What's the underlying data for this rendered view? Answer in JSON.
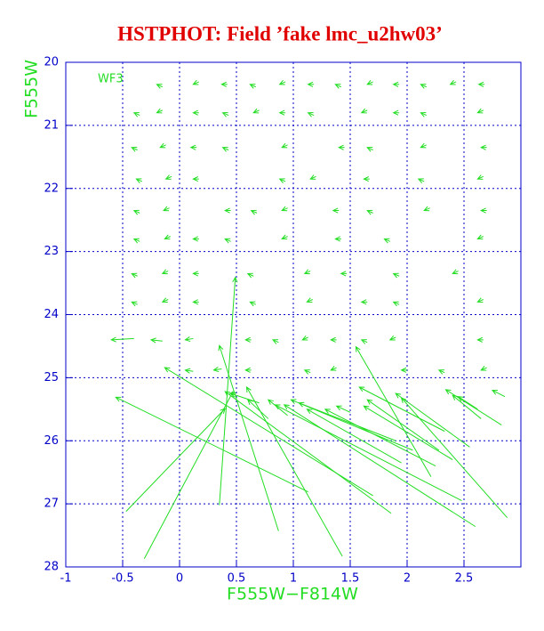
{
  "chart_data": {
    "type": "quiver",
    "title": "HSTPHOT: Field ’fake lmc_u2hw03’",
    "x_label": "F555W−F814W",
    "y_label": "F555W",
    "annotation": "WF3",
    "title_color": "#e00000",
    "label_color": "#22dd22",
    "tick_color": "#0000c8",
    "color": "#22dd22",
    "grid": true,
    "xlim": [
      -1,
      3
    ],
    "ylim": [
      28,
      20
    ],
    "xticks": [
      -1,
      -0.5,
      0,
      0.5,
      1,
      1.5,
      2,
      2.5
    ],
    "yticks": [
      20,
      21,
      22,
      23,
      24,
      25,
      26,
      27,
      28
    ],
    "vectors": {
      "x": [
        -0.15,
        0.17,
        0.42,
        0.67,
        0.93,
        1.18,
        1.42,
        1.7,
        1.93,
        2.17,
        2.43,
        2.68,
        -0.35,
        -0.15,
        0.17,
        0.43,
        0.7,
        0.93,
        1.18,
        1.65,
        1.93,
        2.17,
        2.67,
        -0.37,
        -0.12,
        0.15,
        0.43,
        0.95,
        1.45,
        1.7,
        2.17,
        2.7,
        -0.33,
        -0.07,
        0.17,
        0.93,
        1.2,
        1.67,
        2.15,
        2.67,
        -0.35,
        -0.09,
        0.45,
        0.68,
        0.95,
        1.4,
        1.7,
        2.2,
        2.7,
        -0.35,
        -0.08,
        0.17,
        0.45,
        0.95,
        1.42,
        1.85,
        2.67,
        -0.37,
        -0.1,
        0.17,
        0.65,
        1.15,
        1.47,
        1.93,
        2.45,
        -0.37,
        -0.1,
        0.17,
        0.67,
        1.17,
        1.65,
        1.93,
        2.67,
        -0.15,
        0.12,
        0.63,
        0.87,
        1.13,
        1.38,
        1.65,
        1.9,
        2.67,
        0.12,
        0.37,
        0.63,
        1.15,
        1.38,
        2.0,
        2.33,
        2.7,
        1.13,
        -0.47,
        -0.31,
        0.35,
        0.87,
        1.43,
        1.7,
        1.86,
        2.21,
        2.48,
        2.6,
        2.88,
        2.83,
        2.65,
        2.33,
        2.28,
        2.55,
        1.9,
        2.05,
        1.95,
        2.25,
        2.4,
        2.62,
        0.78,
        0.7,
        2.86,
        -0.4,
        0.95,
        1.5
      ],
      "y": [
        20.39,
        20.31,
        20.35,
        20.39,
        20.31,
        20.35,
        20.39,
        20.31,
        20.35,
        20.39,
        20.31,
        20.35,
        20.84,
        20.76,
        20.8,
        20.84,
        20.76,
        20.8,
        20.84,
        20.76,
        20.8,
        20.84,
        20.76,
        21.39,
        21.31,
        21.35,
        21.39,
        21.31,
        21.35,
        21.39,
        21.31,
        21.35,
        21.89,
        21.81,
        21.85,
        21.89,
        21.81,
        21.85,
        21.89,
        21.81,
        22.39,
        22.31,
        22.35,
        22.39,
        22.31,
        22.35,
        22.39,
        22.31,
        22.35,
        22.84,
        22.76,
        22.8,
        22.84,
        22.76,
        22.8,
        22.84,
        22.76,
        23.39,
        23.31,
        23.35,
        23.39,
        23.31,
        23.35,
        23.39,
        23.31,
        23.84,
        23.76,
        23.8,
        23.84,
        23.76,
        23.8,
        23.84,
        23.76,
        24.42,
        24.38,
        24.4,
        24.44,
        24.36,
        24.4,
        24.44,
        24.36,
        24.4,
        24.9,
        24.86,
        24.88,
        24.92,
        24.84,
        24.88,
        24.92,
        24.84,
        26.81,
        27.12,
        27.87,
        27.02,
        27.43,
        27.83,
        26.87,
        27.15,
        26.57,
        26.95,
        27.36,
        27.22,
        25.75,
        25.65,
        25.85,
        26.15,
        26.1,
        26.0,
        26.15,
        26.35,
        26.4,
        26.3,
        25.5,
        25.65,
        25.4,
        25.3,
        24.38,
        25.6,
        25.55
      ],
      "x_end": [
        -0.2,
        0.12,
        0.37,
        0.62,
        0.88,
        1.13,
        1.37,
        1.65,
        1.88,
        2.12,
        2.38,
        2.63,
        -0.4,
        -0.2,
        0.12,
        0.38,
        0.65,
        0.88,
        1.13,
        1.6,
        1.88,
        2.12,
        2.62,
        -0.42,
        -0.17,
        0.1,
        0.38,
        0.9,
        1.4,
        1.65,
        2.12,
        2.65,
        -0.38,
        -0.12,
        0.12,
        0.88,
        1.15,
        1.62,
        2.1,
        2.62,
        -0.4,
        -0.14,
        0.4,
        0.63,
        0.9,
        1.35,
        1.65,
        2.15,
        2.65,
        -0.4,
        -0.13,
        0.12,
        0.4,
        0.9,
        1.37,
        1.8,
        2.62,
        -0.42,
        -0.15,
        0.12,
        0.6,
        1.1,
        1.42,
        1.88,
        2.4,
        -0.42,
        -0.15,
        0.12,
        0.62,
        1.12,
        1.6,
        1.88,
        2.62,
        -0.25,
        0.05,
        0.58,
        0.82,
        1.08,
        1.33,
        1.6,
        1.85,
        2.62,
        0.05,
        0.3,
        0.58,
        1.1,
        1.33,
        1.95,
        2.28,
        2.65,
        -0.56,
        0.4,
        0.47,
        0.49,
        0.35,
        0.59,
        -0.13,
        0.4,
        1.55,
        0.84,
        0.92,
        1.95,
        2.34,
        2.4,
        1.58,
        1.65,
        1.9,
        1.05,
        0.98,
        1.12,
        1.28,
        1.62,
        2.45,
        0.6,
        0.45,
        2.75,
        -0.6,
        0.78,
        1.38
      ],
      "y_end": [
        20.35,
        20.35,
        20.35,
        20.35,
        20.35,
        20.35,
        20.35,
        20.35,
        20.35,
        20.35,
        20.35,
        20.35,
        20.8,
        20.8,
        20.8,
        20.8,
        20.8,
        20.8,
        20.8,
        20.8,
        20.8,
        20.8,
        20.8,
        21.35,
        21.35,
        21.35,
        21.35,
        21.35,
        21.35,
        21.35,
        21.35,
        21.35,
        21.85,
        21.85,
        21.85,
        21.85,
        21.85,
        21.85,
        21.85,
        21.85,
        22.35,
        22.35,
        22.35,
        22.35,
        22.35,
        22.35,
        22.35,
        22.35,
        22.35,
        22.8,
        22.8,
        22.8,
        22.8,
        22.8,
        22.8,
        22.8,
        22.8,
        23.35,
        23.35,
        23.35,
        23.35,
        23.35,
        23.35,
        23.35,
        23.35,
        23.8,
        23.8,
        23.8,
        23.8,
        23.8,
        23.8,
        23.8,
        23.8,
        24.4,
        24.4,
        24.4,
        24.4,
        24.4,
        24.4,
        24.4,
        24.4,
        24.4,
        24.88,
        24.88,
        24.88,
        24.88,
        24.88,
        24.88,
        24.88,
        24.88,
        25.31,
        25.49,
        25.22,
        23.41,
        24.49,
        25.15,
        24.84,
        25.22,
        24.51,
        25.43,
        25.43,
        25.32,
        25.19,
        25.28,
        25.15,
        25.35,
        25.25,
        25.4,
        25.35,
        25.5,
        25.5,
        25.45,
        25.3,
        25.35,
        25.25,
        25.2,
        24.4,
        25.35,
        25.45
      ]
    }
  }
}
